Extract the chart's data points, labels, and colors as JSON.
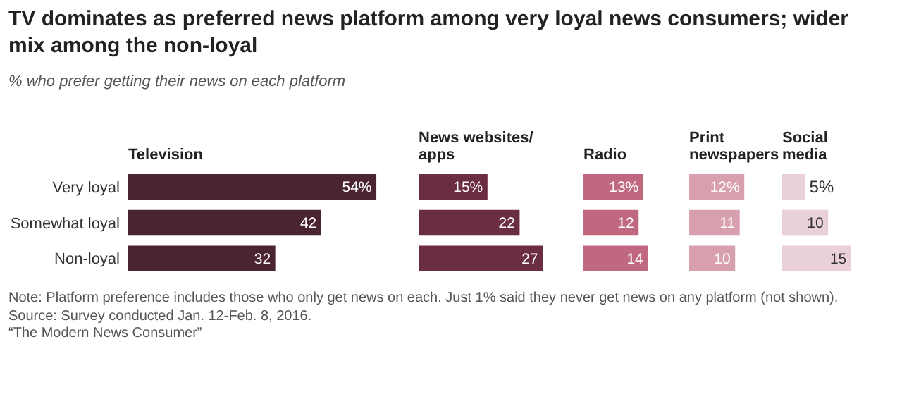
{
  "chart_data": [
    {
      "type": "other",
      "title": "TV dominates as preferred news platform among very loyal news consumers; wider mix among the non-loyal",
      "subtitle": "% who prefer getting their news on each platform",
      "annotations": [
        "Note: Platform preference includes those who only get news on each. Just 1% said they never get news on any platform (not shown).",
        "Source: Survey conducted Jan. 12-Feb. 8, 2016.",
        "“The Modern News Consumer”"
      ]
    },
    {
      "type": "bar",
      "orientation": "horizontal",
      "title": "Television",
      "categories": [
        "Very loyal",
        "Somewhat loyal",
        "Non-loyal"
      ],
      "values": [
        54,
        42,
        32
      ],
      "value_labels": [
        "54%",
        "42",
        "32"
      ],
      "color": "#4a2430",
      "tick_labels": "y"
    },
    {
      "type": "bar",
      "orientation": "horizontal",
      "title": "News websites/ apps",
      "categories": [
        null,
        null,
        null
      ],
      "values": [
        15,
        22,
        27
      ],
      "value_labels": [
        "15%",
        "22",
        "27"
      ],
      "color": "#6b2d42",
      "tick_labels": false
    },
    {
      "type": "bar",
      "orientation": "horizontal",
      "title": "Radio",
      "categories": [
        null,
        null,
        null
      ],
      "values": [
        13,
        12,
        14
      ],
      "value_labels": [
        "13%",
        "12",
        "14"
      ],
      "color": "#c0687f",
      "tick_labels": false
    },
    {
      "type": "bar",
      "orientation": "horizontal",
      "title": "Print newspapers",
      "categories": [
        null,
        null,
        null
      ],
      "values": [
        12,
        11,
        10
      ],
      "value_labels": [
        "12%",
        "11",
        "10"
      ],
      "color": "#d89fae",
      "tick_labels": false
    },
    {
      "type": "bar",
      "orientation": "horizontal",
      "title": "Social media",
      "categories": [
        null,
        null,
        null
      ],
      "values": [
        5,
        10,
        15
      ],
      "value_labels": [
        "5%",
        "10",
        "15"
      ],
      "color": "#ead0d8",
      "tick_labels": false
    }
  ]
}
